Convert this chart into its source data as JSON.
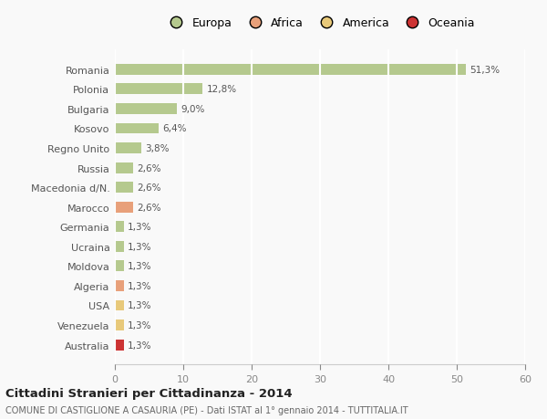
{
  "categories": [
    "Romania",
    "Polonia",
    "Bulgaria",
    "Kosovo",
    "Regno Unito",
    "Russia",
    "Macedonia d/N.",
    "Marocco",
    "Germania",
    "Ucraina",
    "Moldova",
    "Algeria",
    "USA",
    "Venezuela",
    "Australia"
  ],
  "values": [
    51.3,
    12.8,
    9.0,
    6.4,
    3.8,
    2.6,
    2.6,
    2.6,
    1.3,
    1.3,
    1.3,
    1.3,
    1.3,
    1.3,
    1.3
  ],
  "labels": [
    "51,3%",
    "12,8%",
    "9,0%",
    "6,4%",
    "3,8%",
    "2,6%",
    "2,6%",
    "2,6%",
    "1,3%",
    "1,3%",
    "1,3%",
    "1,3%",
    "1,3%",
    "1,3%",
    "1,3%"
  ],
  "colors": [
    "#b5c98e",
    "#b5c98e",
    "#b5c98e",
    "#b5c98e",
    "#b5c98e",
    "#b5c98e",
    "#b5c98e",
    "#e8a07a",
    "#b5c98e",
    "#b5c98e",
    "#b5c98e",
    "#e8a07a",
    "#e8c97a",
    "#e8c97a",
    "#cc3333"
  ],
  "legend_labels": [
    "Europa",
    "Africa",
    "America",
    "Oceania"
  ],
  "legend_colors": [
    "#b5c98e",
    "#e8a07a",
    "#e8c97a",
    "#cc3333"
  ],
  "title": "Cittadini Stranieri per Cittadinanza - 2014",
  "subtitle": "COMUNE DI CASTIGLIONE A CASAURIA (PE) - Dati ISTAT al 1° gennaio 2014 - TUTTITALIA.IT",
  "xlim": [
    0,
    60
  ],
  "xticks": [
    0,
    10,
    20,
    30,
    40,
    50,
    60
  ],
  "bg_color": "#f9f9f9",
  "grid_color": "#ffffff",
  "bar_height": 0.55
}
